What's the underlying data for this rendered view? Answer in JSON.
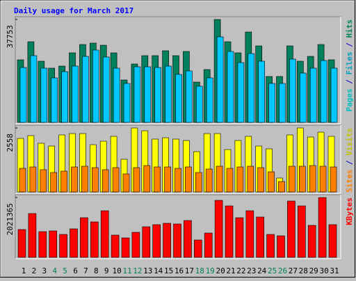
{
  "title": "Daily usage for March 2017",
  "chart_data": [
    {
      "type": "bar",
      "side_labels": [
        {
          "text": "Pages",
          "color": "#00c0c0"
        },
        {
          "text": " / ",
          "color": "#0000c0"
        },
        {
          "text": "Files",
          "color": "#00a0c0"
        },
        {
          "text": " / ",
          "color": "#0000c0"
        },
        {
          "text": "Hits",
          "color": "#00805c"
        }
      ],
      "ylim": [
        0,
        37753
      ],
      "yticks": [
        37753
      ],
      "series": [
        {
          "color": "#00805c",
          "values": [
            22960,
            29590,
            22450,
            19900,
            20660,
            25510,
            28570,
            29080,
            28310,
            25510,
            15560,
            21430,
            24490,
            24490,
            26280,
            24490,
            26020,
            14800,
            19390,
            37753,
            29590,
            25510,
            33160,
            28060,
            16840,
            16840,
            28060,
            22450,
            24230,
            28570,
            22960
          ]
        },
        {
          "color": "#00c8ff",
          "values": [
            20150,
            24490,
            19900,
            16330,
            18620,
            20660,
            24230,
            26530,
            23980,
            19900,
            14290,
            20410,
            20410,
            20150,
            20660,
            17600,
            18880,
            13270,
            16330,
            31380,
            26020,
            21940,
            25250,
            22450,
            14290,
            14290,
            23210,
            18110,
            19900,
            22700,
            19900
          ]
        }
      ]
    },
    {
      "type": "bar",
      "side_labels": [
        {
          "text": "Sites",
          "color": "#ff8000"
        },
        {
          "text": " / ",
          "color": "#0000c0"
        },
        {
          "text": "Visits",
          "color": "#c0c000"
        }
      ],
      "ylim": [
        0,
        2558
      ],
      "yticks": [
        2558
      ],
      "series": [
        {
          "color": "#ffff00",
          "values": [
            2141,
            2252,
            1946,
            1835,
            2280,
            2335,
            2335,
            1890,
            2029,
            2224,
            1307,
            2558,
            2446,
            2113,
            2168,
            2113,
            2057,
            1612,
            2335,
            2335,
            1696,
            2057,
            2224,
            1835,
            1724,
            556,
            2280,
            2558,
            2196,
            2391,
            2224
          ]
        },
        {
          "color": "#ff8000",
          "values": [
            945,
            1001,
            890,
            778,
            834,
            1001,
            1029,
            973,
            890,
            973,
            723,
            973,
            1056,
            1001,
            1001,
            945,
            1001,
            778,
            917,
            1029,
            945,
            1001,
            1029,
            973,
            806,
            417,
            1029,
            1029,
            1056,
            1029,
            1001
          ]
        }
      ]
    },
    {
      "type": "bar",
      "side_labels": [
        {
          "text": "KBytes",
          "color": "#ff0000"
        }
      ],
      "ylim": [
        0,
        2021365
      ],
      "yticks": [
        2021365
      ],
      "categories": [
        "1",
        "2",
        "3",
        "4",
        "5",
        "6",
        "7",
        "8",
        "9",
        "10",
        "11",
        "12",
        "13",
        "14",
        "15",
        "16",
        "17",
        "18",
        "19",
        "20",
        "21",
        "22",
        "23",
        "24",
        "25",
        "26",
        "27",
        "28",
        "29",
        "30",
        "31"
      ],
      "category_colors": [
        "#000000",
        "#000000",
        "#000000",
        "#00805c",
        "#00805c",
        "#000000",
        "#000000",
        "#000000",
        "#000000",
        "#000000",
        "#00805c",
        "#00805c",
        "#000000",
        "#000000",
        "#000000",
        "#000000",
        "#000000",
        "#00805c",
        "#00805c",
        "#000000",
        "#000000",
        "#000000",
        "#000000",
        "#000000",
        "#00805c",
        "#00805c",
        "#000000",
        "#000000",
        "#000000",
        "#000000",
        "#000000"
      ],
      "series": [
        {
          "color": "#ff0000",
          "values": [
            940160,
            1480750,
            869650,
            893150,
            775630,
            963660,
            1339730,
            1198700,
            1574770,
            752130,
            658110,
            846140,
            1034180,
            1104690,
            1151700,
            1128190,
            1245710,
            587600,
            822640,
            1927330,
            1739300,
            1339730,
            1574770,
            1363230,
            775630,
            728620,
            1903820,
            1739300,
            1081180,
            2021365,
            1104690
          ]
        }
      ]
    }
  ]
}
